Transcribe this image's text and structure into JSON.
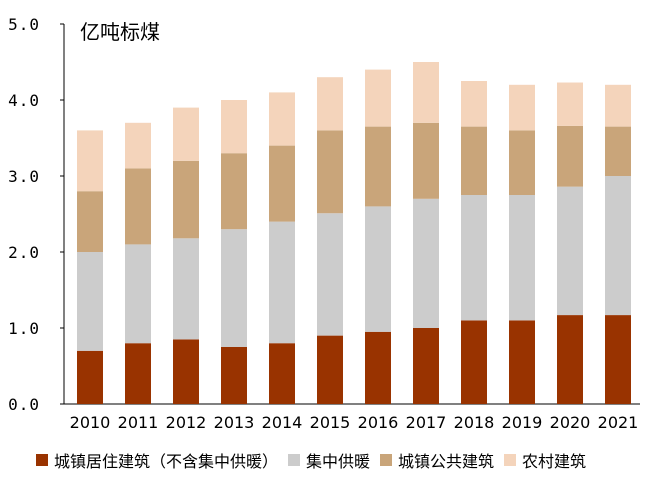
{
  "chart_data": {
    "type": "bar",
    "stacked": true,
    "unit_label": "亿吨标煤",
    "categories": [
      "2010",
      "2011",
      "2012",
      "2013",
      "2014",
      "2015",
      "2016",
      "2017",
      "2018",
      "2019",
      "2020",
      "2021"
    ],
    "y_ticks": [
      "0.0",
      "1.0",
      "2.0",
      "3.0",
      "4.0",
      "5.0"
    ],
    "ylim": [
      0,
      5
    ],
    "grid": false,
    "legend_position": "bottom",
    "series": [
      {
        "name": "城镇居住建筑（不含集中供暖）",
        "color": "#993300",
        "values": [
          0.7,
          0.8,
          0.85,
          0.75,
          0.8,
          0.9,
          0.95,
          1.0,
          1.1,
          1.1,
          1.17,
          1.17
        ]
      },
      {
        "name": "集中供暖",
        "color": "#cccccc",
        "values": [
          1.3,
          1.3,
          1.33,
          1.55,
          1.6,
          1.61,
          1.65,
          1.7,
          1.65,
          1.65,
          1.69,
          1.83
        ]
      },
      {
        "name": "城镇公共建筑",
        "color": "#c9a57a",
        "values": [
          0.8,
          1.0,
          1.02,
          1.0,
          1.0,
          1.09,
          1.05,
          1.0,
          0.9,
          0.85,
          0.8,
          0.65
        ]
      },
      {
        "name": "农村建筑",
        "color": "#f4d4bb",
        "values": [
          0.8,
          0.6,
          0.7,
          0.7,
          0.7,
          0.7,
          0.75,
          0.8,
          0.6,
          0.6,
          0.57,
          0.55
        ]
      }
    ]
  }
}
